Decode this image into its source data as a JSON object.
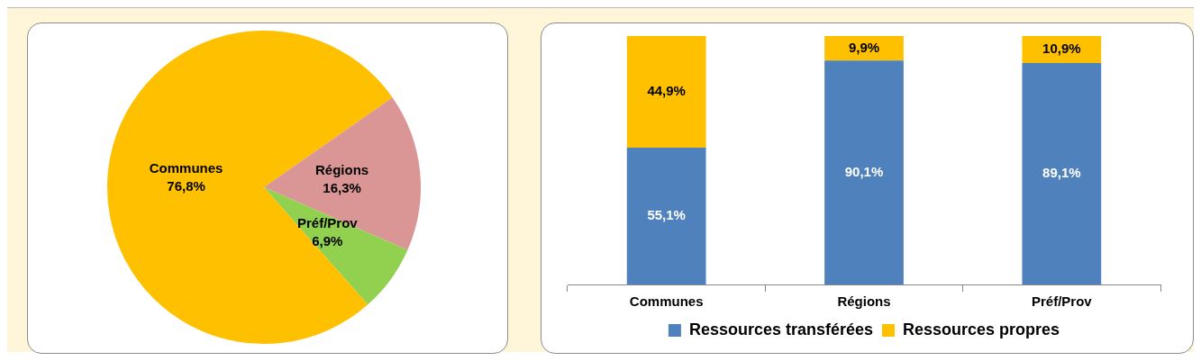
{
  "chart_data": [
    {
      "type": "pie",
      "categories": [
        "Communes",
        "Régions",
        "Préf/Prov"
      ],
      "values": [
        76.8,
        16.3,
        6.9
      ],
      "colors": [
        "#ffc000",
        "#d99694",
        "#92d050"
      ],
      "value_labels": [
        "76,8%",
        "16,3%",
        "6,9%"
      ]
    },
    {
      "type": "bar",
      "stacked": true,
      "legend": "bottom",
      "categories": [
        "Communes",
        "Régions",
        "Préf/Prov"
      ],
      "series": [
        {
          "name": "Ressources transférées",
          "color": "#4f81bd",
          "values": [
            55.1,
            90.1,
            89.1
          ],
          "value_labels": [
            "55,1%",
            "90,1%",
            "89,1%"
          ]
        },
        {
          "name": "Ressources propres",
          "color": "#ffc000",
          "values": [
            44.9,
            9.9,
            10.9
          ],
          "value_labels": [
            "44,9%",
            "9,9%",
            "10,9%"
          ]
        }
      ]
    }
  ]
}
